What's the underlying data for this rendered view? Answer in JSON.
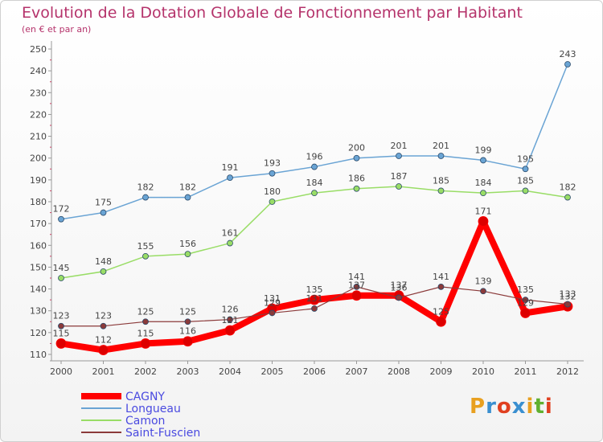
{
  "title": "Evolution de la Dotation Globale de Fonctionnement par Habitant",
  "subtitle": "(en € et par an)",
  "logo": {
    "text": "Proxiti",
    "colors": [
      "#e8a020",
      "#3a8fd0",
      "#e04020",
      "#3a8fd0",
      "#e8a020",
      "#60b030",
      "#e04020"
    ]
  },
  "chart_data": {
    "type": "line",
    "x": [
      "2000",
      "2001",
      "2002",
      "2003",
      "2004",
      "2005",
      "2006",
      "2007",
      "2008",
      "2009",
      "2010",
      "2011",
      "2012"
    ],
    "ylim": [
      110,
      250
    ],
    "yticks": [
      110,
      120,
      130,
      140,
      150,
      160,
      170,
      180,
      190,
      200,
      210,
      220,
      230,
      240,
      250
    ],
    "grid": false,
    "legend_position": "bottom-left",
    "series": [
      {
        "name": "CAGNY",
        "color": "#ff0000",
        "width": 8,
        "values": [
          115,
          112,
          115,
          116,
          121,
          131,
          135,
          137,
          137,
          125,
          171,
          129,
          132
        ],
        "labels": [
          "115",
          "112",
          "115",
          "116",
          "121",
          "131",
          "135",
          "137",
          "137",
          "125",
          "171",
          "129",
          "132"
        ]
      },
      {
        "name": "Longueau",
        "color": "#6aa4d4",
        "width": 1.5,
        "values": [
          172,
          175,
          182,
          182,
          191,
          193,
          196,
          200,
          201,
          201,
          199,
          195,
          243
        ],
        "labels": [
          "172",
          "175",
          "182",
          "182",
          "191",
          "193",
          "196",
          "200",
          "201",
          "201",
          "199",
          "195",
          "243"
        ]
      },
      {
        "name": "Camon",
        "color": "#99dd66",
        "width": 1.5,
        "values": [
          145,
          148,
          155,
          156,
          161,
          180,
          184,
          186,
          187,
          185,
          184,
          185,
          182
        ],
        "labels": [
          "145",
          "148",
          "155",
          "156",
          "161",
          "180",
          "184",
          "186",
          "187",
          "185",
          "184",
          "185",
          "182"
        ]
      },
      {
        "name": "Saint-Fuscien",
        "color": "#8b3a3a",
        "width": 1.2,
        "values": [
          123,
          123,
          125,
          125,
          126,
          129,
          131,
          141,
          136,
          141,
          139,
          135,
          133
        ],
        "labels": [
          "123",
          "123",
          "125",
          "125",
          "126",
          "129",
          "131",
          "141",
          "136",
          "141",
          "139",
          "135",
          "133"
        ]
      }
    ]
  }
}
